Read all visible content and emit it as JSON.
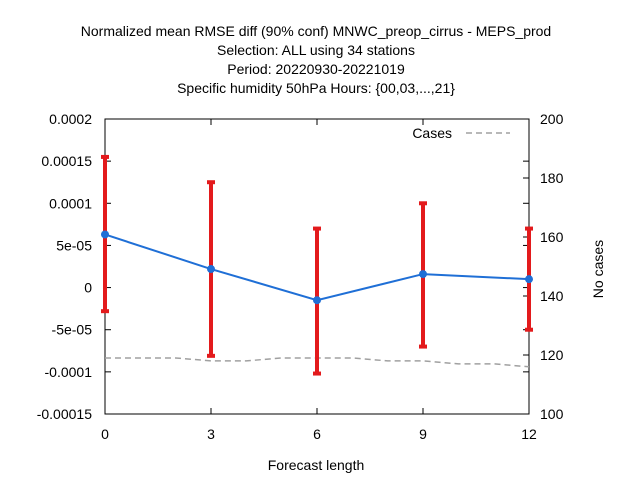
{
  "chart_data": {
    "type": "line",
    "title_lines": [
      "Normalized mean RMSE diff (90% conf) MNWC_preop_cirrus - MEPS_prod",
      "Selection: ALL using    34 stations",
      "Period: 20220930-20221019",
      "Specific humidity 50hPa   Hours: {00,03,...,21}"
    ],
    "xlabel": "Forecast length",
    "ylabel_right": "No cases",
    "x_ticks": [
      "0",
      "3",
      "6",
      "9",
      "12"
    ],
    "y_ticks_left": [
      "0.0002",
      "0.00015",
      "0.0001",
      "5e-05",
      "0",
      "-5e-05",
      "-0.0001",
      "-0.00015"
    ],
    "y_ticks_right": [
      "200",
      "180",
      "160",
      "140",
      "120",
      "100"
    ],
    "xlim": [
      0,
      12
    ],
    "ylim_left": [
      -0.00015,
      0.0002
    ],
    "ylim_right": [
      100,
      200
    ],
    "legend_position": "top-right",
    "colors": {
      "mean_line": "#1f6fd6",
      "errorbar": "#e31a1c",
      "cases": "#a0a0a0"
    },
    "series": [
      {
        "type": "line-errorbar",
        "x": [
          0,
          3,
          6,
          9,
          12
        ],
        "y": [
          6.3e-05,
          2.2e-05,
          -1.5e-05,
          1.6e-05,
          1e-05
        ],
        "ci_low": [
          -2.8e-05,
          -8.1e-05,
          -0.000102,
          -7e-05,
          -5e-05
        ],
        "ci_high": [
          0.000155,
          0.000125,
          7e-05,
          0.0001,
          7e-05
        ]
      },
      {
        "name": "Cases",
        "type": "line-dashed",
        "axis": "right",
        "x": [
          0,
          1,
          2,
          3,
          4,
          5,
          6,
          7,
          8,
          9,
          10,
          11,
          12
        ],
        "y": [
          119,
          119,
          119,
          118,
          118,
          119,
          119,
          119,
          118,
          118,
          117,
          117,
          116
        ]
      }
    ]
  }
}
